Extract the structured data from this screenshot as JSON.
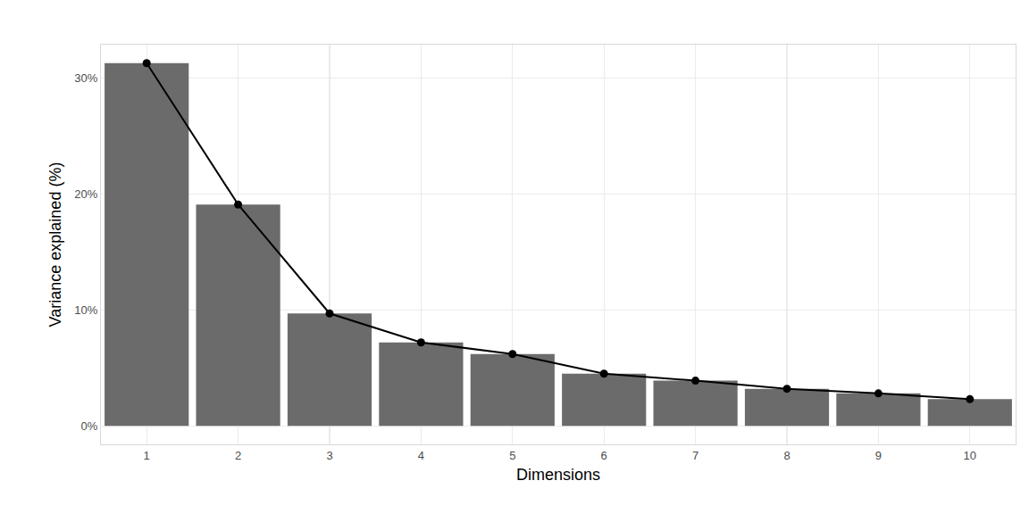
{
  "chart_data": {
    "type": "bar",
    "x_label": "Dimensions",
    "y_label": "Variance explained (%)",
    "categories": [
      "1",
      "2",
      "3",
      "4",
      "5",
      "6",
      "7",
      "8",
      "9",
      "10"
    ],
    "series": [
      {
        "type": "bar",
        "color": "#6b6b6b",
        "values": [
          31.3,
          19.1,
          9.7,
          7.2,
          6.2,
          4.5,
          3.9,
          3.2,
          2.8,
          2.3
        ]
      },
      {
        "type": "line",
        "color": "#000000",
        "marker": "circle",
        "line_style": "solid",
        "values": [
          31.3,
          19.1,
          9.7,
          7.2,
          6.2,
          4.5,
          3.9,
          3.2,
          2.8,
          2.3
        ]
      }
    ],
    "ylim": [
      -1.6,
      32.9
    ],
    "yticks": [
      {
        "value": 0,
        "label": "0%"
      },
      {
        "value": 10,
        "label": "10%"
      },
      {
        "value": 20,
        "label": "20%"
      },
      {
        "value": 30,
        "label": "30%"
      }
    ],
    "grid": true
  }
}
